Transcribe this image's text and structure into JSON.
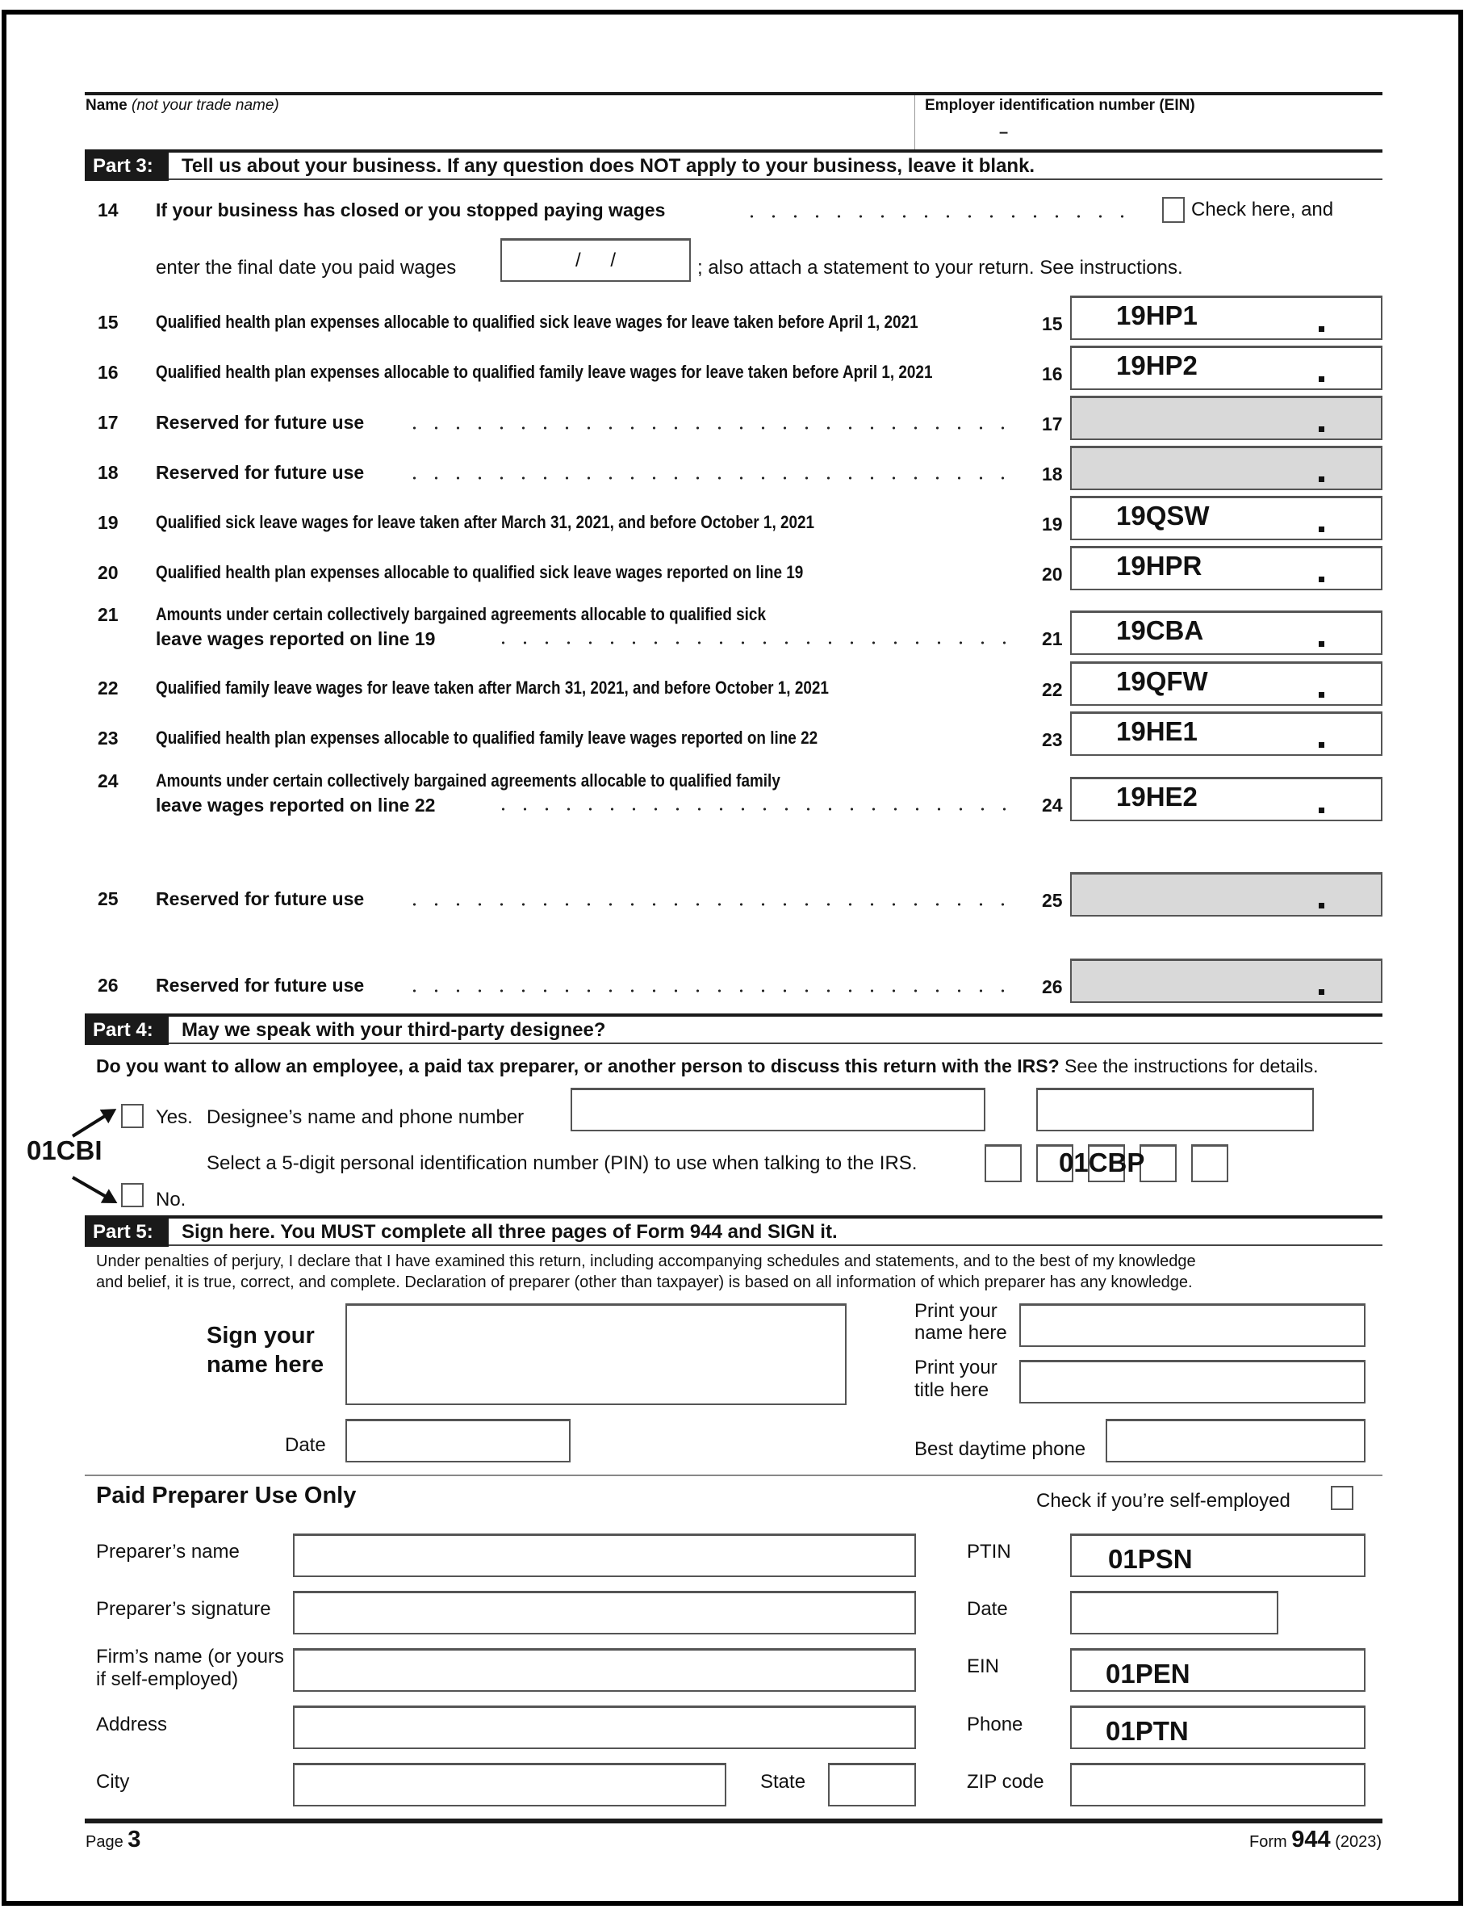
{
  "header": {
    "name_label": "Name",
    "name_note": "(not your trade name)",
    "ein_label": "Employer identification number (EIN)",
    "ein_sep": "–"
  },
  "part3": {
    "tag": "Part 3:",
    "title": "Tell us about your business. If any question does NOT apply to your business, leave it blank.",
    "line14": {
      "num": "14",
      "text": "If your business has closed or you stopped paying wages",
      "check_label": "Check here, and",
      "text2": "enter the final date you paid wages",
      "date_value": "/ /",
      "text3": "; also attach a statement to your return. See instructions."
    }
  },
  "lines": [
    {
      "num": "15",
      "text": "Qualified health plan expenses allocable to qualified sick leave wages for leave taken before April 1, 2021",
      "value": "19HP1",
      "gray": false,
      "leader": false
    },
    {
      "num": "16",
      "text": "Qualified health plan expenses allocable to qualified family leave wages for leave taken before April 1, 2021",
      "value": "19HP2",
      "gray": false,
      "leader": false
    },
    {
      "num": "17",
      "text": "Reserved for future use",
      "value": "",
      "gray": true,
      "leader": true
    },
    {
      "num": "18",
      "text": "Reserved for future use",
      "value": "",
      "gray": true,
      "leader": true
    },
    {
      "num": "19",
      "text": "Qualified sick leave wages for leave taken after March 31, 2021, and before October 1, 2021",
      "value": "19QSW",
      "gray": false,
      "leader": false
    },
    {
      "num": "20",
      "text": "Qualified health plan expenses allocable to qualified sick leave wages reported on line 19",
      "value": "19HPR",
      "gray": false,
      "leader": false
    },
    {
      "num": "21",
      "text": "Amounts under certain collectively bargained agreements allocable to qualified sick",
      "text2": "leave wages reported on line 19",
      "value": "19CBA",
      "gray": false,
      "leader": true
    },
    {
      "num": "22",
      "text": "Qualified family leave wages for leave taken after March 31, 2021, and before October 1, 2021",
      "value": "19QFW",
      "gray": false,
      "leader": false
    },
    {
      "num": "23",
      "text": "Qualified health plan expenses allocable to qualified family leave wages reported on line 22",
      "value": "19HE1",
      "gray": false,
      "leader": false
    },
    {
      "num": "24",
      "text": "Amounts under certain collectively bargained agreements allocable to qualified family",
      "text2": "leave wages reported on line 22",
      "value": "19HE2",
      "gray": false,
      "leader": true
    },
    {
      "num": "25",
      "text": "Reserved for future use",
      "value": "",
      "gray": true,
      "leader": true
    },
    {
      "num": "26",
      "text": "Reserved for future use",
      "value": "",
      "gray": true,
      "leader": true
    }
  ],
  "part4": {
    "tag": "Part 4:",
    "title": "May we speak with your third-party designee?",
    "question_bold": "Do you want to allow an employee, a paid tax preparer, or another person to discuss this return with the IRS?",
    "question_rest": " See the instructions for details.",
    "yes_label": "Yes.",
    "designee_label": "Designee’s name and phone number",
    "pin_label": "Select a 5-digit personal identification number (PIN) to use when talking to the IRS.",
    "pin_value": "01CBP",
    "no_label": "No.",
    "annotation": "01CBI"
  },
  "part5": {
    "tag": "Part 5:",
    "title": "Sign here. You MUST complete all three pages of Form 944 and SIGN it.",
    "perjury1": "Under penalties of perjury, I declare that I have examined this return, including accompanying schedules and statements, and to the best of my knowledge",
    "perjury2": "and belief, it is true, correct, and complete. Declaration of preparer (other than taxpayer) is based on all information of which preparer has any knowledge.",
    "sign1": "Sign your",
    "sign2": "name here",
    "print_name1": "Print your",
    "print_name2": "name here",
    "print_title1": "Print your",
    "print_title2": "title here",
    "date_label": "Date",
    "phone_label": "Best daytime phone"
  },
  "preparer": {
    "title": "Paid Preparer Use Only",
    "self_employed": "Check if you’re self-employed",
    "name_label": "Preparer’s name",
    "signature_label": "Preparer’s signature",
    "firm1": "Firm’s name (or yours",
    "firm2": "if self-employed)",
    "address_label": "Address",
    "city_label": "City",
    "state_label": "State",
    "ptin_label": "PTIN",
    "ptin_value": "01PSN",
    "date_label": "Date",
    "ein_label": "EIN",
    "ein_value": "01PEN",
    "phone_label": "Phone",
    "phone_value": "01PTN",
    "zip_label": "ZIP code"
  },
  "footer": {
    "page_label": "Page",
    "page_num": "3",
    "form_label": "Form",
    "form_num": "944",
    "year": "(2023)"
  }
}
